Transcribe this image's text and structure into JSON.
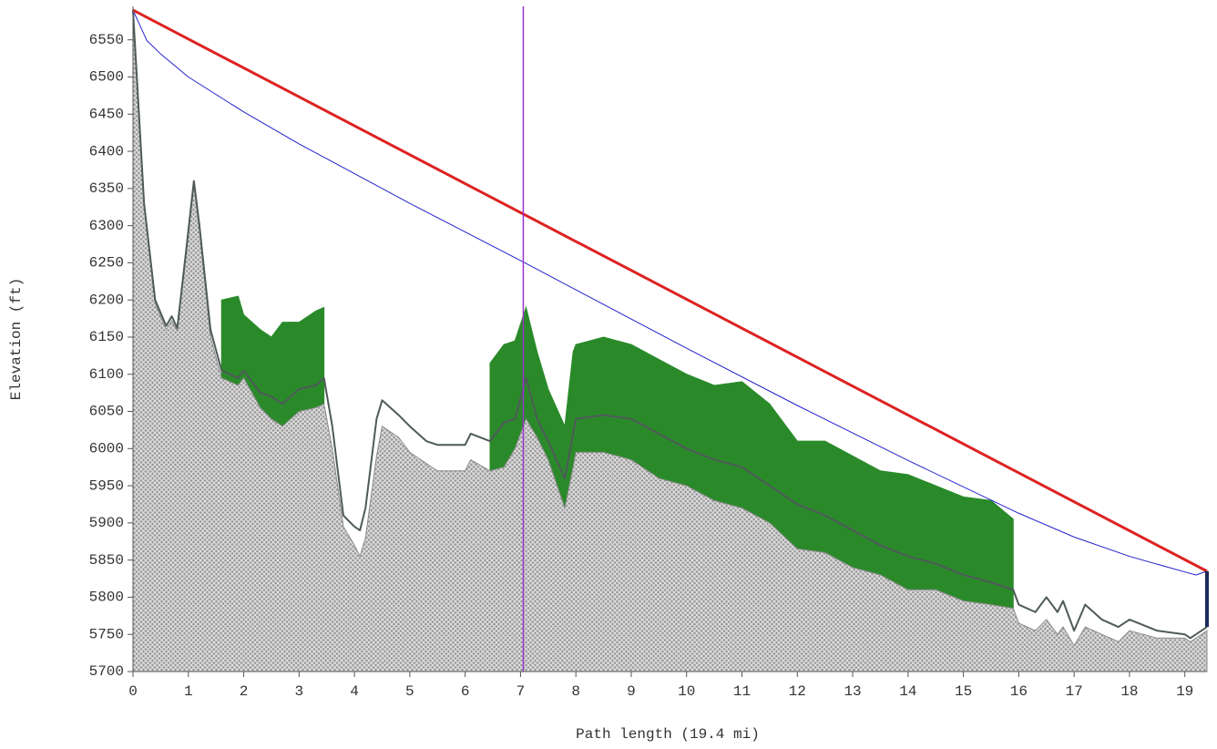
{
  "chart_data": {
    "type": "area",
    "xlabel": "Path length (19.4 mi)",
    "ylabel": "Elevation (ft)",
    "xlim": [
      0,
      19.4
    ],
    "xticks": [
      0,
      1,
      2,
      3,
      4,
      5,
      6,
      7,
      8,
      9,
      10,
      11,
      12,
      13,
      14,
      15,
      16,
      17,
      18,
      19
    ],
    "ylim": [
      5700,
      6595
    ],
    "yticks": [
      5700,
      5750,
      5800,
      5850,
      5900,
      5950,
      6000,
      6050,
      6100,
      6150,
      6200,
      6250,
      6300,
      6350,
      6400,
      6450,
      6500,
      6550
    ],
    "x": [
      0,
      0.2,
      0.4,
      0.6,
      0.7,
      0.8,
      0.95,
      1.1,
      1.2,
      1.4,
      1.6,
      1.9,
      2.0,
      2.3,
      2.5,
      2.7,
      3.0,
      3.3,
      3.45,
      3.6,
      3.8,
      4.0,
      4.1,
      4.2,
      4.4,
      4.5,
      4.8,
      5.0,
      5.3,
      5.5,
      6.0,
      6.1,
      6.45,
      6.7,
      6.9,
      7.1,
      7.3,
      7.5,
      7.8,
      7.95,
      8.0,
      8.5,
      9.0,
      9.5,
      10.0,
      10.5,
      11.0,
      11.5,
      12.0,
      12.5,
      13.0,
      13.5,
      14.0,
      14.5,
      15.0,
      15.5,
      15.9,
      16.0,
      16.3,
      16.5,
      16.7,
      16.8,
      17.0,
      17.2,
      17.5,
      17.8,
      18.0,
      18.5,
      19.0,
      19.1,
      19.4
    ],
    "series": [
      {
        "style": "band",
        "color": "#2a8a2a",
        "values": [
          null,
          null,
          null,
          null,
          null,
          null,
          null,
          null,
          null,
          null,
          6200,
          6205,
          6180,
          6160,
          6150,
          6170,
          6170,
          6185,
          6190,
          null,
          null,
          null,
          null,
          null,
          null,
          null,
          null,
          null,
          null,
          null,
          null,
          null,
          6115,
          6140,
          6145,
          6190,
          6130,
          6080,
          6030,
          6130,
          6140,
          6150,
          6140,
          6120,
          6100,
          6085,
          6090,
          6060,
          6010,
          6010,
          5990,
          5970,
          5965,
          5950,
          5935,
          5930,
          5905,
          null,
          null,
          null,
          null,
          null,
          null,
          null,
          null,
          null,
          null,
          null,
          null,
          null,
          null
        ]
      },
      {
        "style": "area",
        "color": "#8a8a8a",
        "values": [
          6590,
          6330,
          6195,
          6160,
          6172,
          6158,
          6255,
          6355,
          6295,
          6150,
          6095,
          6085,
          6095,
          6055,
          6040,
          6030,
          6050,
          6055,
          6060,
          6000,
          5895,
          5870,
          5855,
          5880,
          5990,
          6030,
          6015,
          5995,
          5980,
          5970,
          5970,
          5985,
          5970,
          5975,
          6000,
          6040,
          6015,
          5985,
          5920,
          5975,
          5995,
          5995,
          5985,
          5960,
          5950,
          5930,
          5920,
          5900,
          5865,
          5860,
          5840,
          5830,
          5810,
          5810,
          5795,
          5790,
          5785,
          5765,
          5755,
          5770,
          5750,
          5760,
          5735,
          5760,
          5750,
          5740,
          5755,
          5745,
          5745,
          5740,
          5755
        ]
      },
      {
        "style": "line",
        "color": "#4f5a5a",
        "width": 2,
        "values": [
          6590,
          6330,
          6200,
          6165,
          6178,
          6162,
          6260,
          6360,
          6300,
          6160,
          6105,
          6095,
          6105,
          6075,
          6070,
          6060,
          6080,
          6085,
          6095,
          6030,
          5910,
          5895,
          5890,
          5920,
          6040,
          6065,
          6045,
          6030,
          6010,
          6005,
          6005,
          6020,
          6010,
          6035,
          6040,
          6095,
          6040,
          6010,
          5960,
          6020,
          6040,
          6045,
          6040,
          6020,
          6000,
          5985,
          5975,
          5950,
          5925,
          5910,
          5890,
          5870,
          5855,
          5845,
          5830,
          5820,
          5810,
          5790,
          5780,
          5800,
          5780,
          5795,
          5755,
          5790,
          5770,
          5760,
          5770,
          5755,
          5750,
          5745,
          5760
        ]
      },
      {
        "style": "line",
        "color": "#2222cc",
        "width": 1,
        "x": [
          0,
          0.25,
          0.5,
          1,
          2,
          3,
          5,
          7,
          10,
          12,
          14,
          16,
          17,
          18,
          19,
          19.2,
          19.4
        ],
        "values": [
          6590,
          6549,
          6531,
          6500,
          6453,
          6410,
          6330,
          6253,
          6135,
          6058,
          5984,
          5913,
          5881,
          5855,
          5834,
          5830,
          5835
        ]
      },
      {
        "style": "line",
        "color": "#dd2222",
        "width": 3,
        "x": [
          0,
          19.4
        ],
        "values": [
          6590,
          5835
        ]
      },
      {
        "style": "line",
        "color": "#1a2a5a",
        "width": 4,
        "x": [
          19.4,
          19.4
        ],
        "values": [
          5760,
          5835
        ]
      }
    ],
    "vlines": [
      {
        "x": 7.05,
        "color": "#9933cc"
      }
    ]
  }
}
